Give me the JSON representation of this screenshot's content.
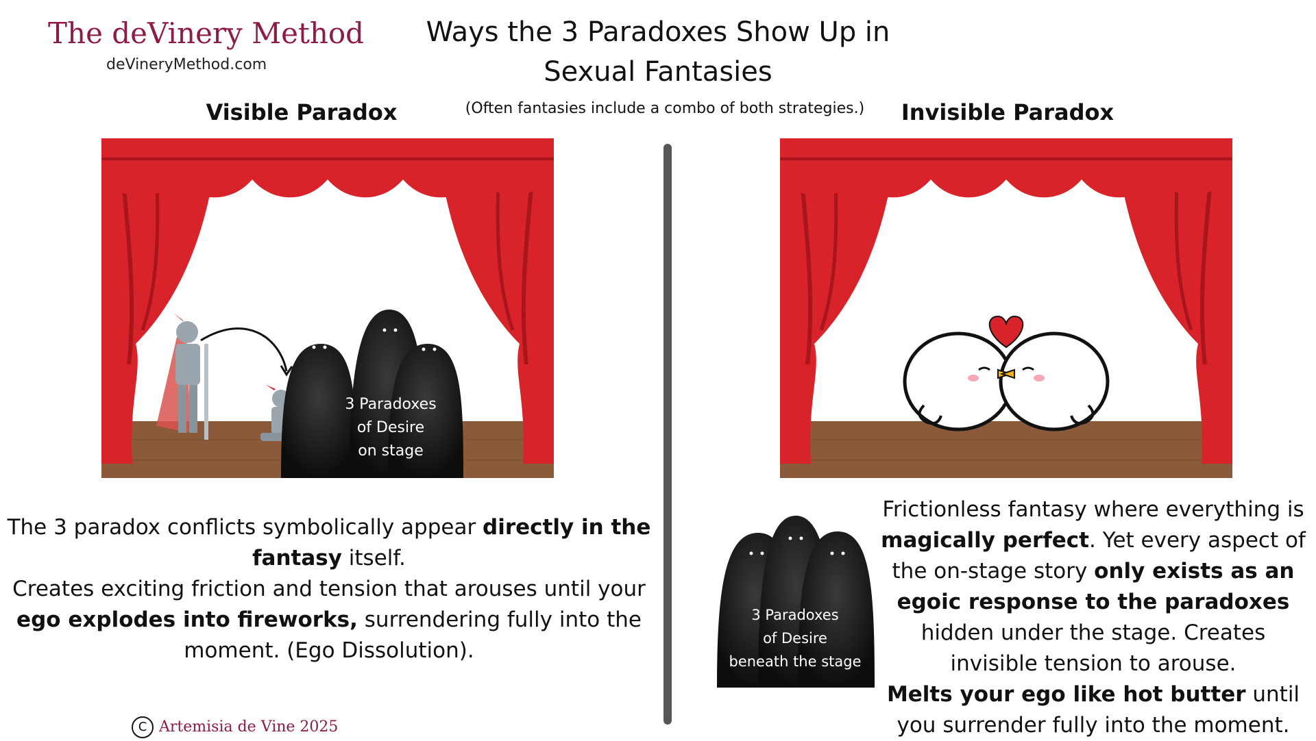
{
  "brand": {
    "title": "The deVinery Method",
    "url": "deVineryMethod.com",
    "color": "#8e1b45"
  },
  "title": {
    "line1": "Ways the 3 Paradoxes Show Up in",
    "line2": "Sexual Fantasies",
    "note": "(Often fantasies include a combo of both strategies.)"
  },
  "left": {
    "heading": "Visible Paradox",
    "figures_label": {
      "line1": "3 Paradoxes",
      "line2": "of Desire",
      "line3": "on stage"
    },
    "text": {
      "p1_a": "The 3 paradox conflicts symbolically appear ",
      "p1_b": "directly in the fantasy",
      "p1_c": " itself.",
      "p2_a": "Creates exciting friction and tension that arouses until your ",
      "p2_b": "ego explodes into fireworks,",
      "p2_c": " surrendering fully into the moment. (Ego Dissolution)."
    }
  },
  "right": {
    "heading": "Invisible Paradox",
    "figures_label": {
      "line1": "3 Paradoxes",
      "line2": "of Desire",
      "line3": "beneath the stage"
    },
    "text": {
      "a": "Frictionless fantasy where everything is ",
      "b": "magically perfect",
      "c": ". Yet every aspect of the on-stage story ",
      "d": "only exists as an egoic response to the paradoxes",
      "e": " hidden under the stage. Creates invisible tension to arouse.",
      "f": "Melts your ego like hot butter",
      "g": " until you surrender fully into the moment."
    }
  },
  "copyright": {
    "symbol": "C",
    "text": "Artemisia de Vine 2025"
  },
  "colors": {
    "curtain": "#d9232a",
    "curtain_dark": "#a8151b",
    "floor": "#8a5a3b",
    "divider": "#575757",
    "heart": "#d9232a"
  }
}
